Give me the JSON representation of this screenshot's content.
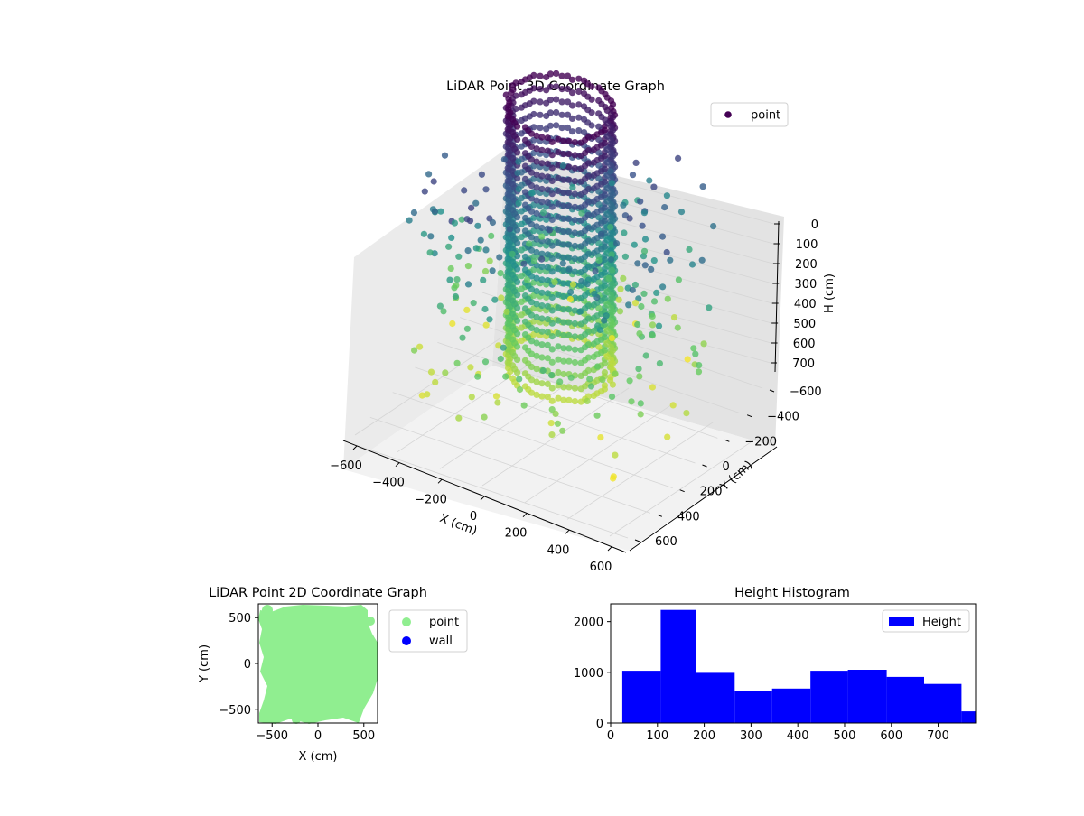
{
  "chart_data": [
    {
      "type": "scatter3d",
      "title": "LiDAR Point 3D Coordinate Graph",
      "xlabel": "X (cm)",
      "ylabel": "Y (cm)",
      "zlabel": "H (cm)",
      "xlim": [
        -650,
        650
      ],
      "ylim": [
        -650,
        650
      ],
      "zlim": [
        780,
        0
      ],
      "xticks": [
        -600,
        -400,
        -200,
        0,
        200,
        400,
        600
      ],
      "yticks": [
        -600,
        -400,
        -200,
        0,
        200,
        400,
        600
      ],
      "zticks": [
        0,
        100,
        200,
        300,
        400,
        500,
        600,
        700
      ],
      "legend": [
        "point"
      ],
      "legend_position": "top-right",
      "colormap": "viridis",
      "grid": true
    },
    {
      "type": "scatter",
      "title": "LiDAR Point 2D Coordinate Graph",
      "xlabel": "X (cm)",
      "ylabel": "Y (cm)",
      "xlim": [
        -650,
        650
      ],
      "ylim": [
        -650,
        650
      ],
      "xticks": [
        -500,
        0,
        500
      ],
      "yticks": [
        -500,
        0,
        500
      ],
      "series": [
        {
          "name": "point",
          "color": "#90ee90"
        },
        {
          "name": "wall",
          "color": "#0000ff"
        }
      ],
      "legend_position": "outside-right"
    },
    {
      "type": "bar",
      "title": "Height Histogram",
      "xlabel": "",
      "ylabel": "",
      "xlim": [
        0,
        780
      ],
      "ylim": [
        0,
        2350
      ],
      "xticks": [
        0,
        100,
        200,
        300,
        400,
        500,
        600,
        700
      ],
      "yticks": [
        0,
        1000,
        2000
      ],
      "bin_edges": [
        25,
        107,
        182,
        265,
        345,
        427,
        507,
        590,
        670,
        750,
        780
      ],
      "values": [
        1030,
        2230,
        990,
        630,
        680,
        1030,
        1050,
        910,
        770,
        230
      ],
      "legend": [
        "Height"
      ],
      "legend_position": "top-right",
      "color": "#0000ff"
    }
  ]
}
